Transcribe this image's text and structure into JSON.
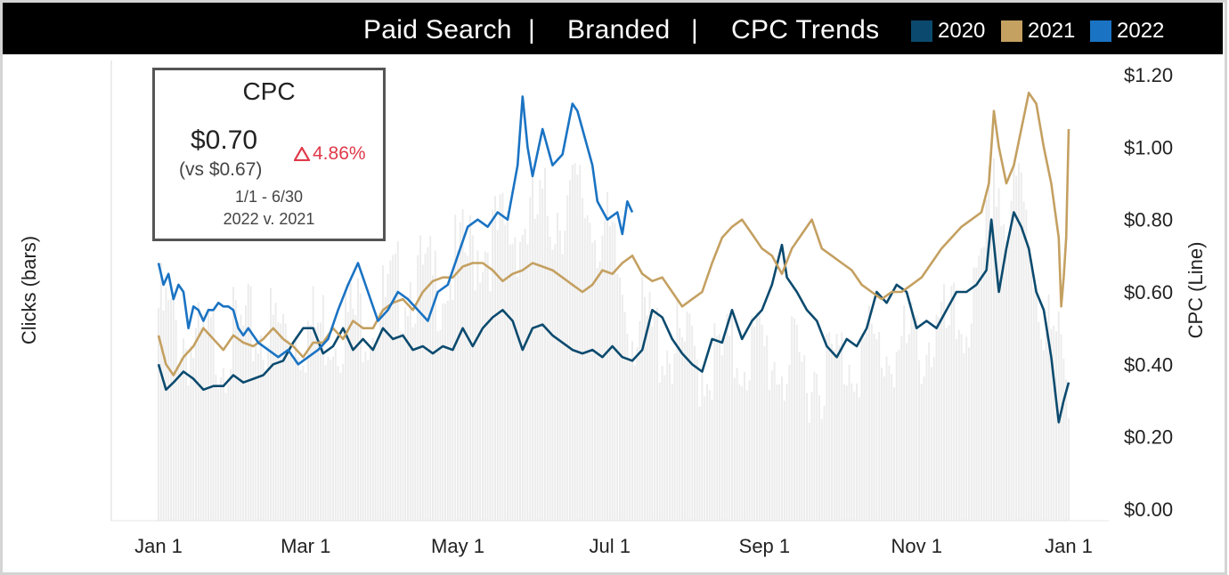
{
  "header": {
    "segments": [
      "Paid Search",
      "Branded",
      "CPC Trends"
    ],
    "separator": "|"
  },
  "legend": [
    {
      "label": "2020",
      "color": "#0b4a6e"
    },
    {
      "label": "2021",
      "color": "#c4a061"
    },
    {
      "label": "2022",
      "color": "#1a73c3"
    }
  ],
  "kpi_card": {
    "title": "CPC",
    "value": "$0.70",
    "comparison": "(vs $0.67)",
    "delta": "4.86%",
    "delta_color": "#e0394a",
    "date_range": "1/1 - 6/30",
    "period_compare": "2022 v. 2021"
  },
  "chart_data": {
    "type": "line",
    "xlabel": "",
    "ylabel_left": "Clicks (bars)",
    "ylabel_right": "CPC (Line)",
    "x_ticks": [
      "Jan 1",
      "Mar 1",
      "May 1",
      "Jul 1",
      "Sep 1",
      "Nov 1",
      "Jan 1"
    ],
    "x_tick_days": [
      0,
      59,
      120,
      181,
      243,
      304,
      365
    ],
    "y_right_ticks": [
      "$0.00",
      "$0.20",
      "$0.40",
      "$0.60",
      "$0.80",
      "$1.00",
      "$1.20"
    ],
    "ylim": [
      0,
      1.2
    ],
    "bar_color": "#ececec",
    "bars_note_series": "clicks",
    "clicks_relative": [
      [
        0,
        0.55
      ],
      [
        15,
        0.45
      ],
      [
        30,
        0.48
      ],
      [
        45,
        0.5
      ],
      [
        60,
        0.5
      ],
      [
        75,
        0.52
      ],
      [
        90,
        0.55
      ],
      [
        100,
        0.62
      ],
      [
        110,
        0.6
      ],
      [
        120,
        0.65
      ],
      [
        130,
        0.7
      ],
      [
        140,
        0.72
      ],
      [
        150,
        0.75
      ],
      [
        160,
        0.78
      ],
      [
        170,
        0.8
      ],
      [
        180,
        0.7
      ],
      [
        190,
        0.52
      ],
      [
        200,
        0.48
      ],
      [
        210,
        0.45
      ],
      [
        220,
        0.42
      ],
      [
        230,
        0.44
      ],
      [
        240,
        0.46
      ],
      [
        250,
        0.42
      ],
      [
        260,
        0.4
      ],
      [
        270,
        0.42
      ],
      [
        280,
        0.45
      ],
      [
        290,
        0.45
      ],
      [
        300,
        0.45
      ],
      [
        310,
        0.48
      ],
      [
        320,
        0.5
      ],
      [
        330,
        0.58
      ],
      [
        335,
        0.9
      ],
      [
        340,
        0.72
      ],
      [
        345,
        0.82
      ],
      [
        350,
        0.7
      ],
      [
        355,
        0.52
      ],
      [
        360,
        0.45
      ],
      [
        365,
        0.4
      ]
    ],
    "series": [
      {
        "name": "2020",
        "color": "#0b4a6e",
        "points": [
          [
            0,
            0.4
          ],
          [
            3,
            0.33
          ],
          [
            6,
            0.35
          ],
          [
            10,
            0.38
          ],
          [
            14,
            0.36
          ],
          [
            18,
            0.33
          ],
          [
            22,
            0.34
          ],
          [
            26,
            0.34
          ],
          [
            30,
            0.37
          ],
          [
            34,
            0.35
          ],
          [
            38,
            0.36
          ],
          [
            42,
            0.37
          ],
          [
            46,
            0.4
          ],
          [
            50,
            0.41
          ],
          [
            54,
            0.46
          ],
          [
            58,
            0.5
          ],
          [
            62,
            0.5
          ],
          [
            66,
            0.43
          ],
          [
            70,
            0.45
          ],
          [
            74,
            0.5
          ],
          [
            78,
            0.44
          ],
          [
            82,
            0.47
          ],
          [
            86,
            0.44
          ],
          [
            90,
            0.5
          ],
          [
            94,
            0.47
          ],
          [
            98,
            0.48
          ],
          [
            102,
            0.44
          ],
          [
            106,
            0.45
          ],
          [
            110,
            0.43
          ],
          [
            114,
            0.45
          ],
          [
            118,
            0.44
          ],
          [
            122,
            0.5
          ],
          [
            126,
            0.45
          ],
          [
            130,
            0.5
          ],
          [
            134,
            0.53
          ],
          [
            138,
            0.55
          ],
          [
            142,
            0.52
          ],
          [
            146,
            0.44
          ],
          [
            150,
            0.5
          ],
          [
            154,
            0.51
          ],
          [
            158,
            0.48
          ],
          [
            162,
            0.46
          ],
          [
            166,
            0.44
          ],
          [
            170,
            0.43
          ],
          [
            174,
            0.44
          ],
          [
            178,
            0.42
          ],
          [
            182,
            0.45
          ],
          [
            186,
            0.42
          ],
          [
            190,
            0.41
          ],
          [
            194,
            0.44
          ],
          [
            198,
            0.55
          ],
          [
            202,
            0.53
          ],
          [
            206,
            0.47
          ],
          [
            210,
            0.43
          ],
          [
            214,
            0.4
          ],
          [
            218,
            0.38
          ],
          [
            222,
            0.47
          ],
          [
            226,
            0.46
          ],
          [
            230,
            0.55
          ],
          [
            234,
            0.47
          ],
          [
            238,
            0.52
          ],
          [
            242,
            0.55
          ],
          [
            246,
            0.62
          ],
          [
            250,
            0.73
          ],
          [
            252,
            0.64
          ],
          [
            256,
            0.6
          ],
          [
            260,
            0.55
          ],
          [
            264,
            0.52
          ],
          [
            268,
            0.45
          ],
          [
            272,
            0.42
          ],
          [
            276,
            0.47
          ],
          [
            280,
            0.45
          ],
          [
            284,
            0.5
          ],
          [
            288,
            0.6
          ],
          [
            292,
            0.57
          ],
          [
            296,
            0.62
          ],
          [
            300,
            0.6
          ],
          [
            304,
            0.5
          ],
          [
            308,
            0.52
          ],
          [
            312,
            0.5
          ],
          [
            316,
            0.55
          ],
          [
            320,
            0.6
          ],
          [
            324,
            0.6
          ],
          [
            328,
            0.62
          ],
          [
            332,
            0.66
          ],
          [
            334,
            0.8
          ],
          [
            337,
            0.6
          ],
          [
            340,
            0.72
          ],
          [
            343,
            0.82
          ],
          [
            346,
            0.78
          ],
          [
            349,
            0.72
          ],
          [
            352,
            0.6
          ],
          [
            355,
            0.55
          ],
          [
            358,
            0.42
          ],
          [
            361,
            0.24
          ],
          [
            363,
            0.3
          ],
          [
            365,
            0.35
          ]
        ]
      },
      {
        "name": "2021",
        "color": "#c4a061",
        "points": [
          [
            0,
            0.48
          ],
          [
            3,
            0.4
          ],
          [
            6,
            0.37
          ],
          [
            10,
            0.42
          ],
          [
            14,
            0.45
          ],
          [
            18,
            0.5
          ],
          [
            22,
            0.47
          ],
          [
            26,
            0.44
          ],
          [
            30,
            0.48
          ],
          [
            34,
            0.46
          ],
          [
            38,
            0.45
          ],
          [
            42,
            0.47
          ],
          [
            46,
            0.5
          ],
          [
            50,
            0.47
          ],
          [
            54,
            0.45
          ],
          [
            58,
            0.42
          ],
          [
            62,
            0.46
          ],
          [
            66,
            0.46
          ],
          [
            70,
            0.5
          ],
          [
            74,
            0.47
          ],
          [
            78,
            0.52
          ],
          [
            82,
            0.5
          ],
          [
            86,
            0.5
          ],
          [
            90,
            0.55
          ],
          [
            94,
            0.57
          ],
          [
            98,
            0.58
          ],
          [
            102,
            0.55
          ],
          [
            106,
            0.6
          ],
          [
            110,
            0.63
          ],
          [
            114,
            0.64
          ],
          [
            118,
            0.64
          ],
          [
            122,
            0.67
          ],
          [
            126,
            0.68
          ],
          [
            130,
            0.68
          ],
          [
            134,
            0.66
          ],
          [
            138,
            0.63
          ],
          [
            142,
            0.65
          ],
          [
            146,
            0.66
          ],
          [
            150,
            0.68
          ],
          [
            154,
            0.67
          ],
          [
            158,
            0.66
          ],
          [
            162,
            0.64
          ],
          [
            166,
            0.62
          ],
          [
            170,
            0.6
          ],
          [
            174,
            0.62
          ],
          [
            178,
            0.66
          ],
          [
            182,
            0.65
          ],
          [
            186,
            0.68
          ],
          [
            190,
            0.7
          ],
          [
            194,
            0.65
          ],
          [
            198,
            0.63
          ],
          [
            202,
            0.64
          ],
          [
            206,
            0.6
          ],
          [
            210,
            0.56
          ],
          [
            214,
            0.58
          ],
          [
            218,
            0.6
          ],
          [
            222,
            0.68
          ],
          [
            226,
            0.75
          ],
          [
            230,
            0.78
          ],
          [
            234,
            0.8
          ],
          [
            238,
            0.76
          ],
          [
            242,
            0.72
          ],
          [
            246,
            0.7
          ],
          [
            250,
            0.65
          ],
          [
            254,
            0.72
          ],
          [
            258,
            0.76
          ],
          [
            262,
            0.8
          ],
          [
            266,
            0.72
          ],
          [
            270,
            0.7
          ],
          [
            274,
            0.68
          ],
          [
            278,
            0.66
          ],
          [
            282,
            0.62
          ],
          [
            286,
            0.6
          ],
          [
            290,
            0.58
          ],
          [
            294,
            0.6
          ],
          [
            298,
            0.6
          ],
          [
            302,
            0.62
          ],
          [
            306,
            0.64
          ],
          [
            310,
            0.68
          ],
          [
            314,
            0.72
          ],
          [
            318,
            0.75
          ],
          [
            322,
            0.78
          ],
          [
            326,
            0.8
          ],
          [
            330,
            0.82
          ],
          [
            333,
            0.9
          ],
          [
            335,
            1.1
          ],
          [
            337,
            1.0
          ],
          [
            340,
            0.9
          ],
          [
            343,
            0.95
          ],
          [
            346,
            1.05
          ],
          [
            349,
            1.15
          ],
          [
            352,
            1.12
          ],
          [
            355,
            1.0
          ],
          [
            358,
            0.9
          ],
          [
            361,
            0.75
          ],
          [
            362,
            0.56
          ],
          [
            363,
            0.64
          ],
          [
            364,
            0.75
          ],
          [
            365,
            1.05
          ]
        ]
      },
      {
        "name": "2022",
        "color": "#1a73c3",
        "points": [
          [
            0,
            0.68
          ],
          [
            2,
            0.62
          ],
          [
            4,
            0.65
          ],
          [
            6,
            0.58
          ],
          [
            8,
            0.62
          ],
          [
            10,
            0.6
          ],
          [
            12,
            0.5
          ],
          [
            14,
            0.56
          ],
          [
            16,
            0.55
          ],
          [
            18,
            0.52
          ],
          [
            20,
            0.55
          ],
          [
            22,
            0.55
          ],
          [
            24,
            0.57
          ],
          [
            26,
            0.56
          ],
          [
            28,
            0.56
          ],
          [
            30,
            0.55
          ],
          [
            32,
            0.5
          ],
          [
            34,
            0.48
          ],
          [
            36,
            0.5
          ],
          [
            40,
            0.46
          ],
          [
            44,
            0.44
          ],
          [
            48,
            0.42
          ],
          [
            52,
            0.44
          ],
          [
            56,
            0.4
          ],
          [
            60,
            0.42
          ],
          [
            64,
            0.44
          ],
          [
            68,
            0.47
          ],
          [
            72,
            0.55
          ],
          [
            76,
            0.62
          ],
          [
            80,
            0.68
          ],
          [
            84,
            0.6
          ],
          [
            88,
            0.52
          ],
          [
            92,
            0.55
          ],
          [
            96,
            0.6
          ],
          [
            100,
            0.58
          ],
          [
            104,
            0.55
          ],
          [
            108,
            0.52
          ],
          [
            112,
            0.6
          ],
          [
            116,
            0.62
          ],
          [
            120,
            0.7
          ],
          [
            124,
            0.78
          ],
          [
            128,
            0.8
          ],
          [
            132,
            0.78
          ],
          [
            136,
            0.82
          ],
          [
            140,
            0.8
          ],
          [
            144,
            0.95
          ],
          [
            146,
            1.14
          ],
          [
            148,
            1.0
          ],
          [
            150,
            0.92
          ],
          [
            154,
            1.05
          ],
          [
            158,
            0.95
          ],
          [
            162,
            0.98
          ],
          [
            166,
            1.12
          ],
          [
            168,
            1.1
          ],
          [
            170,
            1.05
          ],
          [
            172,
            1.0
          ],
          [
            174,
            0.95
          ],
          [
            176,
            0.85
          ],
          [
            180,
            0.8
          ],
          [
            184,
            0.82
          ],
          [
            186,
            0.76
          ],
          [
            188,
            0.85
          ],
          [
            190,
            0.82
          ]
        ]
      }
    ]
  }
}
